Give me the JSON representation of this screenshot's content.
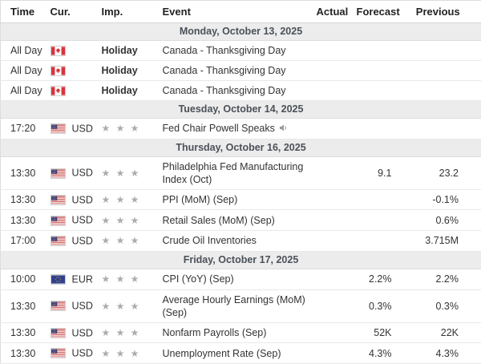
{
  "table": {
    "columns": [
      {
        "key": "time",
        "label": "Time"
      },
      {
        "key": "cur",
        "label": "Cur."
      },
      {
        "key": "imp",
        "label": "Imp."
      },
      {
        "key": "event",
        "label": "Event"
      },
      {
        "key": "actual",
        "label": "Actual"
      },
      {
        "key": "forecast",
        "label": "Forecast"
      },
      {
        "key": "previous",
        "label": "Previous"
      }
    ],
    "rows": [
      {
        "type": "section",
        "label": "Monday, October 13, 2025"
      },
      {
        "type": "event",
        "time": "All Day",
        "flag": "canada",
        "currency": "",
        "holiday": "Holiday",
        "stars": 0,
        "event": "Canada - Thanksgiving Day",
        "speech": false,
        "actual": "",
        "forecast": "",
        "previous": ""
      },
      {
        "type": "event",
        "time": "All Day",
        "flag": "canada",
        "currency": "",
        "holiday": "Holiday",
        "stars": 0,
        "event": "Canada - Thanksgiving Day",
        "speech": false,
        "actual": "",
        "forecast": "",
        "previous": ""
      },
      {
        "type": "event",
        "time": "All Day",
        "flag": "canada",
        "currency": "",
        "holiday": "Holiday",
        "stars": 0,
        "event": "Canada - Thanksgiving Day",
        "speech": false,
        "actual": "",
        "forecast": "",
        "previous": ""
      },
      {
        "type": "section",
        "label": "Tuesday, October 14, 2025"
      },
      {
        "type": "event",
        "time": "17:20",
        "flag": "us",
        "currency": "USD",
        "holiday": "",
        "stars": 3,
        "event": "Fed Chair Powell Speaks",
        "speech": true,
        "actual": "",
        "forecast": "",
        "previous": ""
      },
      {
        "type": "section",
        "label": "Thursday, October 16, 2025"
      },
      {
        "type": "event",
        "time": "13:30",
        "flag": "us",
        "currency": "USD",
        "holiday": "",
        "stars": 3,
        "event": "Philadelphia Fed Manufacturing Index (Oct)",
        "speech": false,
        "actual": "",
        "forecast": "9.1",
        "previous": "23.2"
      },
      {
        "type": "event",
        "time": "13:30",
        "flag": "us",
        "currency": "USD",
        "holiday": "",
        "stars": 3,
        "event": "PPI (MoM) (Sep)",
        "speech": false,
        "actual": "",
        "forecast": "",
        "previous": "-0.1%"
      },
      {
        "type": "event",
        "time": "13:30",
        "flag": "us",
        "currency": "USD",
        "holiday": "",
        "stars": 3,
        "event": "Retail Sales (MoM) (Sep)",
        "speech": false,
        "actual": "",
        "forecast": "",
        "previous": "0.6%"
      },
      {
        "type": "event",
        "time": "17:00",
        "flag": "us",
        "currency": "USD",
        "holiday": "",
        "stars": 3,
        "event": "Crude Oil Inventories",
        "speech": false,
        "actual": "",
        "forecast": "",
        "previous": "3.715M"
      },
      {
        "type": "section",
        "label": "Friday, October 17, 2025"
      },
      {
        "type": "event",
        "time": "10:00",
        "flag": "eu",
        "currency": "EUR",
        "holiday": "",
        "stars": 3,
        "event": "CPI (YoY) (Sep)",
        "speech": false,
        "actual": "",
        "forecast": "2.2%",
        "previous": "2.2%"
      },
      {
        "type": "event",
        "time": "13:30",
        "flag": "us",
        "currency": "USD",
        "holiday": "",
        "stars": 3,
        "event": "Average Hourly Earnings (MoM) (Sep)",
        "speech": false,
        "actual": "",
        "forecast": "0.3%",
        "previous": "0.3%"
      },
      {
        "type": "event",
        "time": "13:30",
        "flag": "us",
        "currency": "USD",
        "holiday": "",
        "stars": 3,
        "event": "Nonfarm Payrolls (Sep)",
        "speech": false,
        "actual": "",
        "forecast": "52K",
        "previous": "22K"
      },
      {
        "type": "event",
        "time": "13:30",
        "flag": "us",
        "currency": "USD",
        "holiday": "",
        "stars": 3,
        "event": "Unemployment Rate (Sep)",
        "speech": false,
        "actual": "",
        "forecast": "4.3%",
        "previous": "4.3%"
      }
    ]
  },
  "icons": {
    "importance_star": "★",
    "speaker": "speaker-icon",
    "flags": {
      "canada": "canada-flag-icon",
      "us": "us-flag-icon",
      "eu": "eu-flag-icon"
    }
  },
  "colors": {
    "text": "#333333",
    "section_bg": "#ececec",
    "section_text": "#4b5159",
    "star_grey": "#acacac",
    "row_border": "#e9e9e9",
    "canada_red": "#d8343b",
    "us_red": "#c94747",
    "us_blue": "#3c3b6e",
    "eu_blue": "#31408f",
    "eu_star_yellow": "#f7c808"
  }
}
